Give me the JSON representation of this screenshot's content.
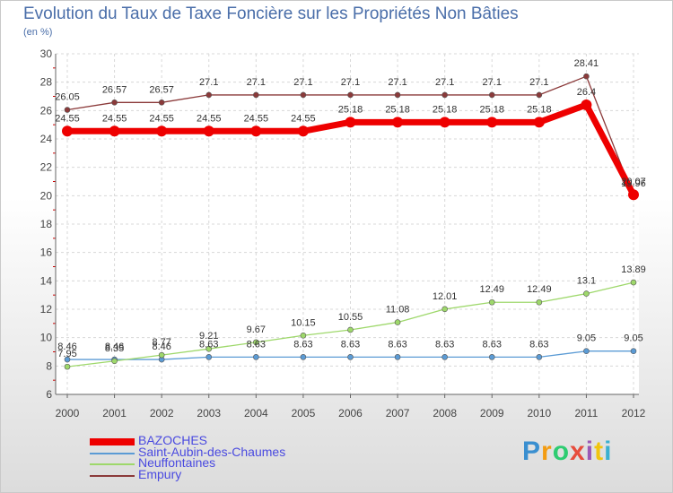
{
  "title": "Evolution du Taux de Taxe Foncière sur les Propriétés Non Bâties",
  "unit_label": "(en %)",
  "brand": {
    "letters": [
      "P",
      "r",
      "o",
      "x",
      "i",
      "t",
      "i"
    ],
    "colors": [
      "#3a8fd0",
      "#f39c12",
      "#2ecc71",
      "#e74c3c",
      "#9b59b6",
      "#f1c40f",
      "#3ab0d0"
    ]
  },
  "chart_data": {
    "type": "line",
    "title": "Evolution du Taux de Taxe Foncière sur les Propriétés Non Bâties",
    "ylabel": "(en %)",
    "xlabel": "",
    "x": [
      "2000",
      "2001",
      "2002",
      "2003",
      "2004",
      "2005",
      "2006",
      "2007",
      "2008",
      "2009",
      "2010",
      "2011",
      "2012"
    ],
    "ylim": [
      6,
      30
    ],
    "yticks": [
      "6",
      "8",
      "10",
      "12",
      "14",
      "16",
      "18",
      "20",
      "22",
      "24",
      "26",
      "28",
      "30"
    ],
    "grid": true,
    "legend_position": "bottom-left",
    "series": [
      {
        "name": "BAZOCHES",
        "color": "#ee0000",
        "weight": "bold",
        "values": [
          24.55,
          24.55,
          24.55,
          24.55,
          24.55,
          24.55,
          25.18,
          25.18,
          25.18,
          25.18,
          25.18,
          26.4,
          20.07
        ],
        "labels": [
          "24.55",
          "24.55",
          "24.55",
          "24.55",
          "24.55",
          "24.55",
          "25.18",
          "25.18",
          "25.18",
          "25.18",
          "25.18",
          "26.4",
          "20.07"
        ]
      },
      {
        "name": "Saint-Aubin-des-Chaumes",
        "color": "#5b9bd5",
        "weight": "thin",
        "values": [
          8.46,
          8.46,
          8.46,
          8.63,
          8.63,
          8.63,
          8.63,
          8.63,
          8.63,
          8.63,
          8.63,
          9.05,
          9.05
        ],
        "labels": [
          "8.46",
          "8.46",
          "8.46",
          "8.63",
          "8.63",
          "8.63",
          "8.63",
          "8.63",
          "8.63",
          "8.63",
          "8.63",
          "9.05",
          "9.05"
        ]
      },
      {
        "name": "Neuffontaines",
        "color": "#9ed86b",
        "weight": "thin",
        "values": [
          7.95,
          8.35,
          8.77,
          9.21,
          9.67,
          10.15,
          10.55,
          11.08,
          12.01,
          12.49,
          12.49,
          13.1,
          13.89
        ],
        "labels": [
          "7.95",
          "8.35",
          "8.77",
          "9.21",
          "9.67",
          "10.15",
          "10.55",
          "11.08",
          "12.01",
          "12.49",
          "12.49",
          "13.1",
          "13.89"
        ]
      },
      {
        "name": "Empury",
        "color": "#8b3a3a",
        "weight": "thin",
        "values": [
          26.05,
          26.57,
          26.57,
          27.1,
          27.1,
          27.1,
          27.1,
          27.1,
          27.1,
          27.1,
          27.1,
          28.41,
          19.96
        ],
        "labels": [
          "26.05",
          "26.57",
          "26.57",
          "27.1",
          "27.1",
          "27.1",
          "27.1",
          "27.1",
          "27.1",
          "27.1",
          "27.1",
          "28.41",
          "19.96"
        ]
      }
    ]
  }
}
